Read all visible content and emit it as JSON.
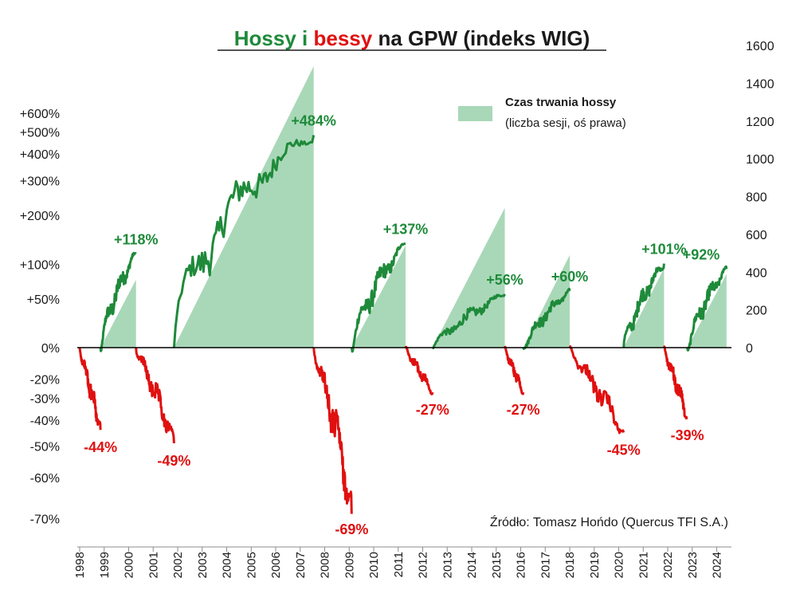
{
  "chart_data": {
    "type": "line",
    "title_parts": [
      {
        "text": "Hossy",
        "color": "#1e8a3a"
      },
      {
        "text": " i ",
        "color": "#1e8a3a"
      },
      {
        "text": "bessy",
        "color": "#e01010"
      },
      {
        "text": " na GPW (indeks WIG)",
        "color": "#1a1a1a"
      }
    ],
    "colors": {
      "bull": "#1e8a3a",
      "bear": "#e01010",
      "duration": "#a9d8b8"
    },
    "left_axis": {
      "ticks": [
        {
          "label": "+600%",
          "value": 600
        },
        {
          "label": "+500%",
          "value": 500
        },
        {
          "label": "+400%",
          "value": 400
        },
        {
          "label": "+300%",
          "value": 300
        },
        {
          "label": "+200%",
          "value": 200
        },
        {
          "label": "+100%",
          "value": 100
        },
        {
          "label": "+50%",
          "value": 50
        },
        {
          "label": "0%",
          "value": 0
        },
        {
          "label": "-20%",
          "value": -20
        },
        {
          "label": "-30%",
          "value": -30
        },
        {
          "label": "-40%",
          "value": -40
        },
        {
          "label": "-50%",
          "value": -50
        },
        {
          "label": "-60%",
          "value": -60
        },
        {
          "label": "-70%",
          "value": -70
        }
      ],
      "scale": "log-ratio"
    },
    "right_axis": {
      "ticks": [
        {
          "label": "1600",
          "value": 1600
        },
        {
          "label": "1400",
          "value": 1400
        },
        {
          "label": "1200",
          "value": 1200
        },
        {
          "label": "1000",
          "value": 1000
        },
        {
          "label": "800",
          "value": 800
        },
        {
          "label": "600",
          "value": 600
        },
        {
          "label": "400",
          "value": 400
        },
        {
          "label": "200",
          "value": 200
        },
        {
          "label": "0",
          "value": 0
        }
      ],
      "range": [
        0,
        1600
      ]
    },
    "x_axis": {
      "range": [
        1998,
        2024.6
      ],
      "labels": [
        "1998",
        "1999",
        "2000",
        "2001",
        "2002",
        "2003",
        "2004",
        "2005",
        "2006",
        "2007",
        "2008",
        "2009",
        "2010",
        "2011",
        "2012",
        "2013",
        "2014",
        "2015",
        "2016",
        "2017",
        "2018",
        "2019",
        "2020",
        "2021",
        "2022",
        "2023",
        "2024"
      ]
    },
    "bull_markets": [
      {
        "start": 1998.85,
        "end": 2000.3,
        "gain": 118,
        "label": "+118%",
        "duration_sessions": 360
      },
      {
        "start": 2001.85,
        "end": 2007.55,
        "gain": 484,
        "label": "+484%",
        "duration_sessions": 1490
      },
      {
        "start": 2009.1,
        "end": 2011.3,
        "gain": 137,
        "label": "+137%",
        "duration_sessions": 540
      },
      {
        "start": 2012.4,
        "end": 2015.35,
        "gain": 56,
        "label": "+56%",
        "duration_sessions": 740
      },
      {
        "start": 2016.1,
        "end": 2018.0,
        "gain": 60,
        "label": "+60%",
        "duration_sessions": 490
      },
      {
        "start": 2020.2,
        "end": 2021.85,
        "gain": 101,
        "label": "+101%",
        "duration_sessions": 420
      },
      {
        "start": 2022.8,
        "end": 2024.4,
        "gain": 92,
        "label": "+92%",
        "duration_sessions": 390
      }
    ],
    "bear_markets": [
      {
        "start": 1998.0,
        "end": 1998.85,
        "loss": -44,
        "label": "-44%"
      },
      {
        "start": 2000.3,
        "end": 2001.85,
        "loss": -49,
        "label": "-49%"
      },
      {
        "start": 2007.55,
        "end": 2009.1,
        "loss": -69,
        "label": "-69%"
      },
      {
        "start": 2011.3,
        "end": 2012.4,
        "loss": -27,
        "label": "-27%"
      },
      {
        "start": 2015.35,
        "end": 2016.1,
        "loss": -27,
        "label": "-27%"
      },
      {
        "start": 2018.0,
        "end": 2020.2,
        "loss": -45,
        "label": "-45%"
      },
      {
        "start": 2021.85,
        "end": 2022.8,
        "loss": -39,
        "label": "-39%"
      }
    ],
    "legend": {
      "title": "Czas trwania hossy",
      "subtitle": "(liczba sesji, oś prawa)"
    },
    "source": "Źródło: Tomasz Hońdo (Quercus TFI S.A.)"
  }
}
